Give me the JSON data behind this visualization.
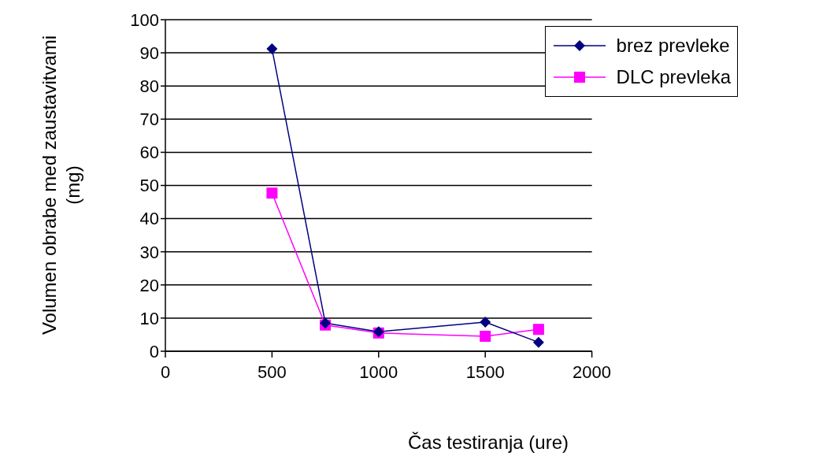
{
  "chart_data": {
    "type": "line",
    "xlabel": "Čas testiranja (ure)",
    "ylabel": "Volumen obrabe med zaustavitvami (mg)",
    "x": [
      500,
      750,
      1000,
      1500,
      1750
    ],
    "series": [
      {
        "name": "brez prevleke",
        "color": "#000080",
        "marker": "diamond",
        "values": [
          91.2,
          8.5,
          5.9,
          8.8,
          2.7
        ]
      },
      {
        "name": "DLC prevleka",
        "color": "#ff00ff",
        "marker": "square",
        "values": [
          47.7,
          7.9,
          5.5,
          4.5,
          6.6
        ]
      }
    ],
    "xlim": [
      0,
      2000
    ],
    "xticks": [
      0,
      500,
      1000,
      1500,
      2000
    ],
    "ylim": [
      0,
      100
    ],
    "yticks": [
      0,
      10,
      20,
      30,
      40,
      50,
      60,
      70,
      80,
      90,
      100
    ],
    "grid": "y",
    "legend": "top right"
  }
}
